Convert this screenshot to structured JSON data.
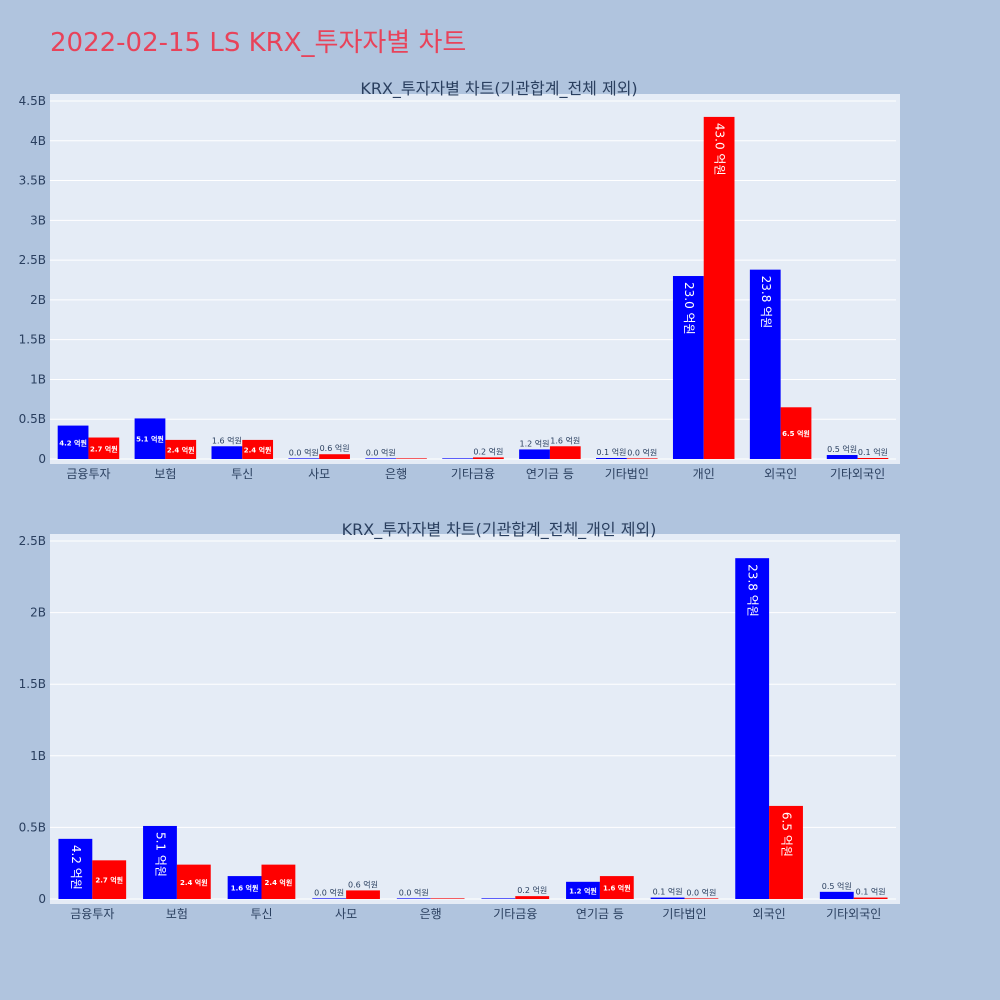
{
  "title": "2022-02-15 LS KRX_투자자별 차트",
  "colors": {
    "buy": "#0000ff",
    "sell": "#ff0000",
    "title": "#e8435a",
    "plot_bg": "#e5ecf6",
    "page_bg": "#b0c4de"
  },
  "chart_data": [
    {
      "type": "bar",
      "title": "KRX_투자자별 차트(기관합계_전체 제외)",
      "categories": [
        "금융투자",
        "보험",
        "투신",
        "사모",
        "은행",
        "기타금융",
        "연기금 등",
        "기타법인",
        "개인",
        "외국인",
        "기타외국인"
      ],
      "series": [
        {
          "values": [
            420000000,
            510000000,
            160000000,
            0,
            0,
            0,
            120000000,
            10000000,
            2300000000,
            2380000000,
            50000000
          ],
          "labels": [
            "4.2 억원",
            "5.1 억원",
            "1.6 억원",
            "0.0 억원",
            "0.0 억원",
            "",
            "1.2 억원",
            "0.1 억원",
            "23.0 억원",
            "23.8 억원",
            "0.5 억원"
          ]
        },
        {
          "values": [
            270000000,
            240000000,
            240000000,
            60000000,
            0,
            20000000,
            160000000,
            0,
            4300000000,
            650000000,
            10000000
          ],
          "labels": [
            "2.7 억원",
            "2.4 억원",
            "2.4 억원",
            "0.6 억원",
            "",
            "0.2 억원",
            "1.6 억원",
            "0.0 억원",
            "43.0 억원",
            "6.5 억원",
            "0.1 억원"
          ]
        }
      ],
      "yticks": [
        "0",
        "0.5B",
        "1B",
        "1.5B",
        "2B",
        "2.5B",
        "3B",
        "3.5B",
        "4B",
        "4.5B"
      ],
      "ylim": [
        0,
        4500000000
      ]
    },
    {
      "type": "bar",
      "title": "KRX_투자자별 차트(기관합계_전체_개인 제외)",
      "categories": [
        "금융투자",
        "보험",
        "투신",
        "사모",
        "은행",
        "기타금융",
        "연기금 등",
        "기타법인",
        "외국인",
        "기타외국인"
      ],
      "series": [
        {
          "values": [
            420000000,
            510000000,
            160000000,
            0,
            0,
            0,
            120000000,
            10000000,
            2380000000,
            50000000
          ],
          "labels": [
            "4.2 억원",
            "5.1 억원",
            "1.6 억원",
            "0.0 억원",
            "0.0 억원",
            "",
            "1.2 억원",
            "0.1 억원",
            "23.8 억원",
            "0.5 억원"
          ]
        },
        {
          "values": [
            270000000,
            240000000,
            240000000,
            60000000,
            0,
            20000000,
            160000000,
            0,
            650000000,
            10000000
          ],
          "labels": [
            "2.7 억원",
            "2.4 억원",
            "2.4 억원",
            "0.6 억원",
            "",
            "0.2 억원",
            "1.6 억원",
            "0.0 억원",
            "6.5 억원",
            "0.1 억원"
          ]
        }
      ],
      "yticks": [
        "0",
        "0.5B",
        "1B",
        "1.5B",
        "2B",
        "2.5B"
      ],
      "ylim": [
        0,
        2500000000
      ]
    }
  ]
}
